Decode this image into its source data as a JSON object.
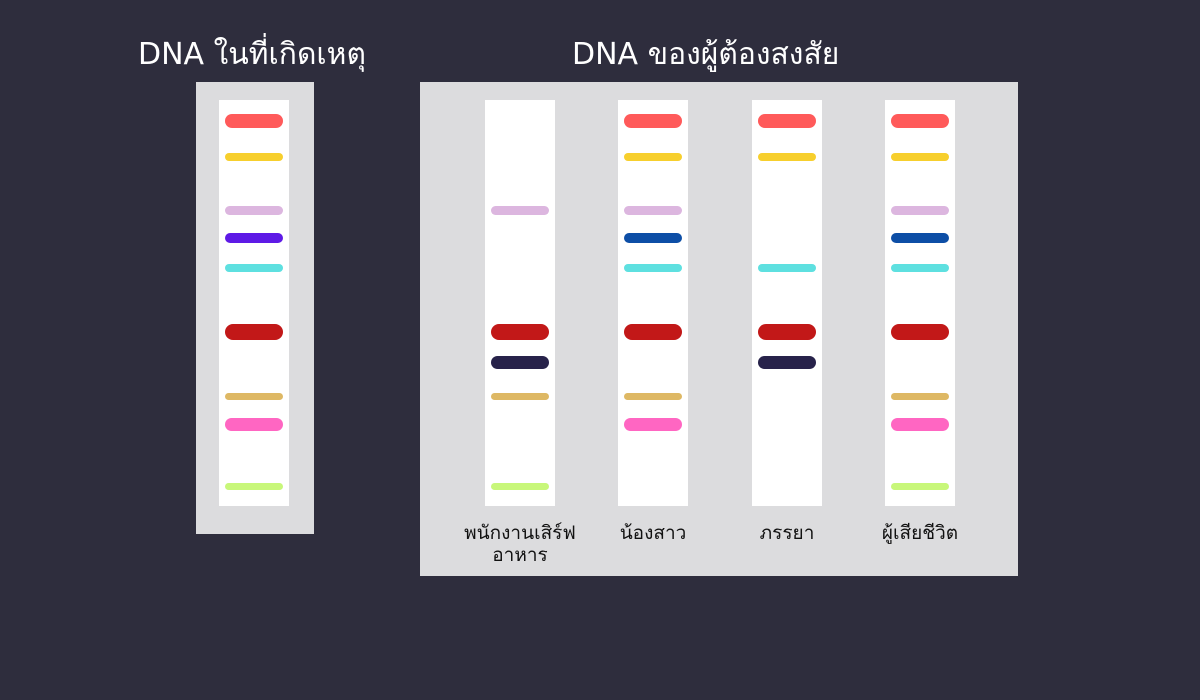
{
  "titles": {
    "crime_scene": "DNA ในที่เกิดเหตุ",
    "suspects": "DNA ของผู้ต้องสงสัย"
  },
  "band_colors": {
    "red": "#ff5a5a",
    "yellow": "#f7cf2d",
    "lavender": "#dcb6df",
    "purple": "#5e1ae6",
    "navy": "#0d4ea6",
    "cyan": "#5ee0e0",
    "darkred": "#c21818",
    "darkblue": "#27224a",
    "tan": "#deb864",
    "pink": "#ff66c2",
    "lime": "#c8f77a"
  },
  "lanes": [
    {
      "id": "crime-scene",
      "label": "",
      "bands": [
        "red",
        "yellow",
        "lavender",
        "purple",
        "cyan",
        "darkred",
        "tan",
        "pink",
        "lime"
      ]
    },
    {
      "id": "waiter",
      "label": "พนักงานเสิร์ฟอาหาร",
      "bands": [
        "lavender",
        "darkred",
        "darkblue",
        "tan",
        "lime"
      ]
    },
    {
      "id": "sister",
      "label": "น้องสาว",
      "bands": [
        "red",
        "yellow",
        "lavender",
        "navy",
        "cyan",
        "darkred",
        "tan",
        "pink"
      ]
    },
    {
      "id": "wife",
      "label": "ภรรยา",
      "bands": [
        "red",
        "yellow",
        "cyan",
        "darkred",
        "darkblue"
      ]
    },
    {
      "id": "victim",
      "label": "ผู้เสียชีวิต",
      "bands": [
        "red",
        "yellow",
        "lavender",
        "navy",
        "cyan",
        "darkred",
        "tan",
        "pink",
        "lime"
      ]
    }
  ]
}
